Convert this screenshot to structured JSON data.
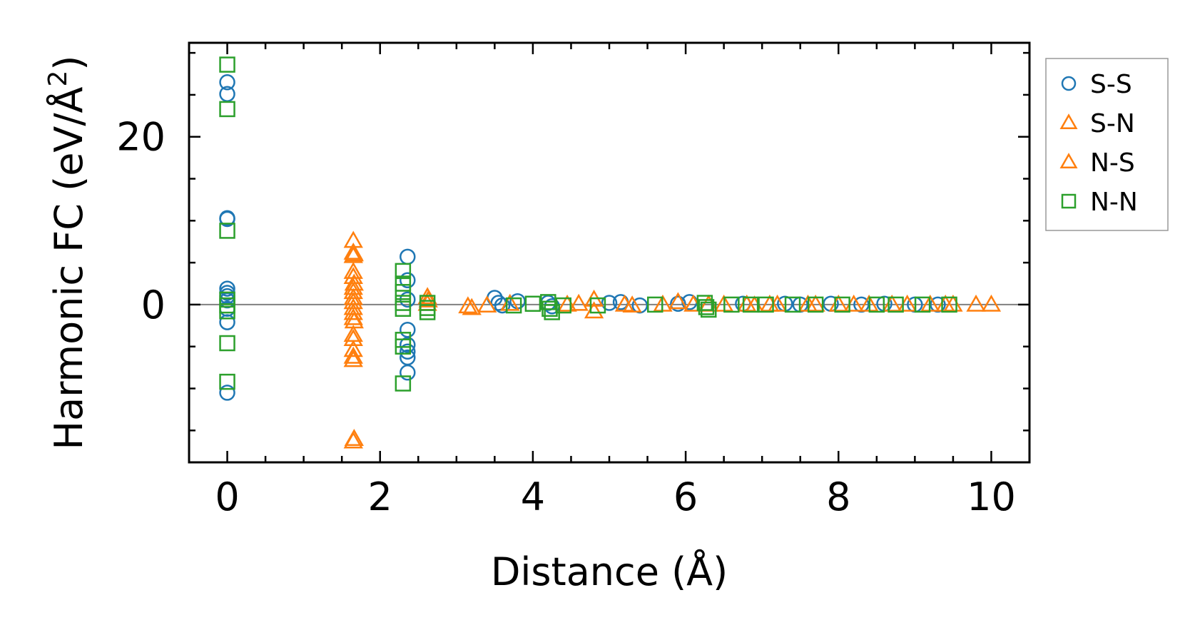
{
  "chart_data": {
    "type": "scatter",
    "xlabel": "Distance (Å)",
    "ylabel_main": "Harmonic FC (eV/Å",
    "ylabel_sup": "2",
    "ylabel_end": ")",
    "xlim": [
      -0.5,
      10.5
    ],
    "ylim": [
      -18.8,
      31.2
    ],
    "xticks": [
      0,
      2,
      4,
      6,
      8,
      10
    ],
    "xtick_labels": [
      "0",
      "2",
      "4",
      "6",
      "8",
      "10"
    ],
    "yticks": [
      0,
      20
    ],
    "ytick_labels": [
      "0",
      "20"
    ],
    "x_minor_step": 0.5,
    "y_minor_step": 5,
    "zero_line": true,
    "grid": false,
    "legend_position": "outside-right",
    "series": [
      {
        "name": "S-S",
        "marker": "circle",
        "color": "#1f77b4",
        "points": [
          [
            0,
            26.5
          ],
          [
            0,
            25.1
          ],
          [
            0,
            10.3
          ],
          [
            0,
            10.2
          ],
          [
            0,
            1.9
          ],
          [
            0,
            1.4
          ],
          [
            0,
            1.0
          ],
          [
            0,
            0.5
          ],
          [
            0,
            -0.5
          ],
          [
            0,
            -2.1
          ],
          [
            0,
            -10.5
          ],
          [
            2.36,
            5.7
          ],
          [
            2.36,
            2.9
          ],
          [
            2.36,
            0.6
          ],
          [
            2.36,
            -3.0
          ],
          [
            2.36,
            -4.8
          ],
          [
            2.36,
            -5.6
          ],
          [
            2.36,
            -6.3
          ],
          [
            2.36,
            -8.1
          ],
          [
            3.5,
            0.8
          ],
          [
            3.55,
            0.2
          ],
          [
            3.6,
            -0.1
          ],
          [
            3.8,
            0.4
          ],
          [
            4.2,
            0.2
          ],
          [
            4.25,
            -0.2
          ],
          [
            5.0,
            0.2
          ],
          [
            5.15,
            0.3
          ],
          [
            5.4,
            -0.1
          ],
          [
            5.9,
            0.1
          ],
          [
            6.05,
            0.3
          ],
          [
            6.75,
            0.1
          ],
          [
            7.3,
            0.1
          ],
          [
            7.5,
            0.0
          ],
          [
            7.9,
            0.1
          ],
          [
            8.3,
            0.0
          ],
          [
            8.6,
            0.1
          ],
          [
            9.0,
            0.0
          ],
          [
            9.3,
            0.0
          ]
        ]
      },
      {
        "name": "S-N",
        "marker": "triangle",
        "color": "#ff7f0e",
        "points": [
          [
            1.65,
            7.6
          ],
          [
            1.65,
            6.2
          ],
          [
            1.65,
            5.8
          ],
          [
            1.65,
            3.9
          ],
          [
            1.65,
            3.3
          ],
          [
            1.65,
            2.0
          ],
          [
            1.65,
            1.5
          ],
          [
            1.65,
            0.8
          ],
          [
            1.65,
            0.3
          ],
          [
            1.65,
            -0.4
          ],
          [
            1.65,
            -1.0
          ],
          [
            1.65,
            -1.6
          ],
          [
            1.65,
            -3.6
          ],
          [
            1.65,
            -4.1
          ],
          [
            1.65,
            -5.4
          ],
          [
            1.65,
            -6.2
          ],
          [
            1.65,
            -6.6
          ],
          [
            1.65,
            -16.3
          ],
          [
            2.62,
            0.9
          ],
          [
            2.62,
            0.1
          ],
          [
            3.15,
            -0.2
          ],
          [
            3.4,
            -0.1
          ],
          [
            4.45,
            0.0
          ],
          [
            4.8,
            0.6
          ],
          [
            4.8,
            -0.8
          ],
          [
            5.3,
            -0.1
          ],
          [
            5.9,
            0.3
          ],
          [
            6.1,
            0.0
          ],
          [
            6.5,
            0.0
          ],
          [
            6.9,
            -0.1
          ],
          [
            7.2,
            0.0
          ],
          [
            7.6,
            0.0
          ],
          [
            8.0,
            0.0
          ],
          [
            8.4,
            0.0
          ],
          [
            8.7,
            0.0
          ],
          [
            9.2,
            0.0
          ],
          [
            9.5,
            0.0
          ],
          [
            9.8,
            0.0
          ],
          [
            10.0,
            0.0
          ]
        ]
      },
      {
        "name": "N-S",
        "marker": "triangle",
        "color": "#ff7f0e",
        "points": [
          [
            1.66,
            6.0
          ],
          [
            1.66,
            2.5
          ],
          [
            1.66,
            -2.0
          ],
          [
            1.66,
            -16.0
          ],
          [
            2.63,
            0.5
          ],
          [
            3.2,
            -0.4
          ],
          [
            3.7,
            0.1
          ],
          [
            4.6,
            0.1
          ],
          [
            5.2,
            0.0
          ],
          [
            5.7,
            0.0
          ],
          [
            6.3,
            0.0
          ],
          [
            6.8,
            0.0
          ],
          [
            7.1,
            0.0
          ],
          [
            7.7,
            0.0
          ],
          [
            8.2,
            0.0
          ],
          [
            8.9,
            0.0
          ],
          [
            9.4,
            0.0
          ]
        ]
      },
      {
        "name": "N-N",
        "marker": "square",
        "color": "#2ca02c",
        "points": [
          [
            0,
            28.6
          ],
          [
            0,
            23.3
          ],
          [
            0,
            8.8
          ],
          [
            0,
            0.6
          ],
          [
            0,
            -0.1
          ],
          [
            0,
            -0.8
          ],
          [
            0,
            -4.6
          ],
          [
            0,
            -9.2
          ],
          [
            2.3,
            4.0
          ],
          [
            2.3,
            2.5
          ],
          [
            2.3,
            1.5
          ],
          [
            2.3,
            0.2
          ],
          [
            2.3,
            -0.5
          ],
          [
            2.3,
            -4.2
          ],
          [
            2.3,
            -5.0
          ],
          [
            2.3,
            -9.4
          ],
          [
            2.62,
            0.2
          ],
          [
            2.62,
            -0.4
          ],
          [
            2.62,
            -0.9
          ],
          [
            3.75,
            -0.1
          ],
          [
            4.0,
            0.1
          ],
          [
            4.2,
            0.3
          ],
          [
            4.22,
            -0.5
          ],
          [
            4.25,
            -0.9
          ],
          [
            4.4,
            -0.1
          ],
          [
            4.85,
            -0.1
          ],
          [
            5.6,
            0.0
          ],
          [
            6.25,
            0.2
          ],
          [
            6.27,
            -0.3
          ],
          [
            6.3,
            -0.6
          ],
          [
            6.6,
            0.0
          ],
          [
            6.85,
            0.0
          ],
          [
            7.05,
            0.0
          ],
          [
            7.4,
            0.0
          ],
          [
            7.7,
            0.0
          ],
          [
            8.05,
            0.0
          ],
          [
            8.5,
            0.0
          ],
          [
            8.75,
            0.0
          ],
          [
            9.1,
            0.0
          ],
          [
            9.45,
            0.0
          ]
        ]
      }
    ]
  }
}
